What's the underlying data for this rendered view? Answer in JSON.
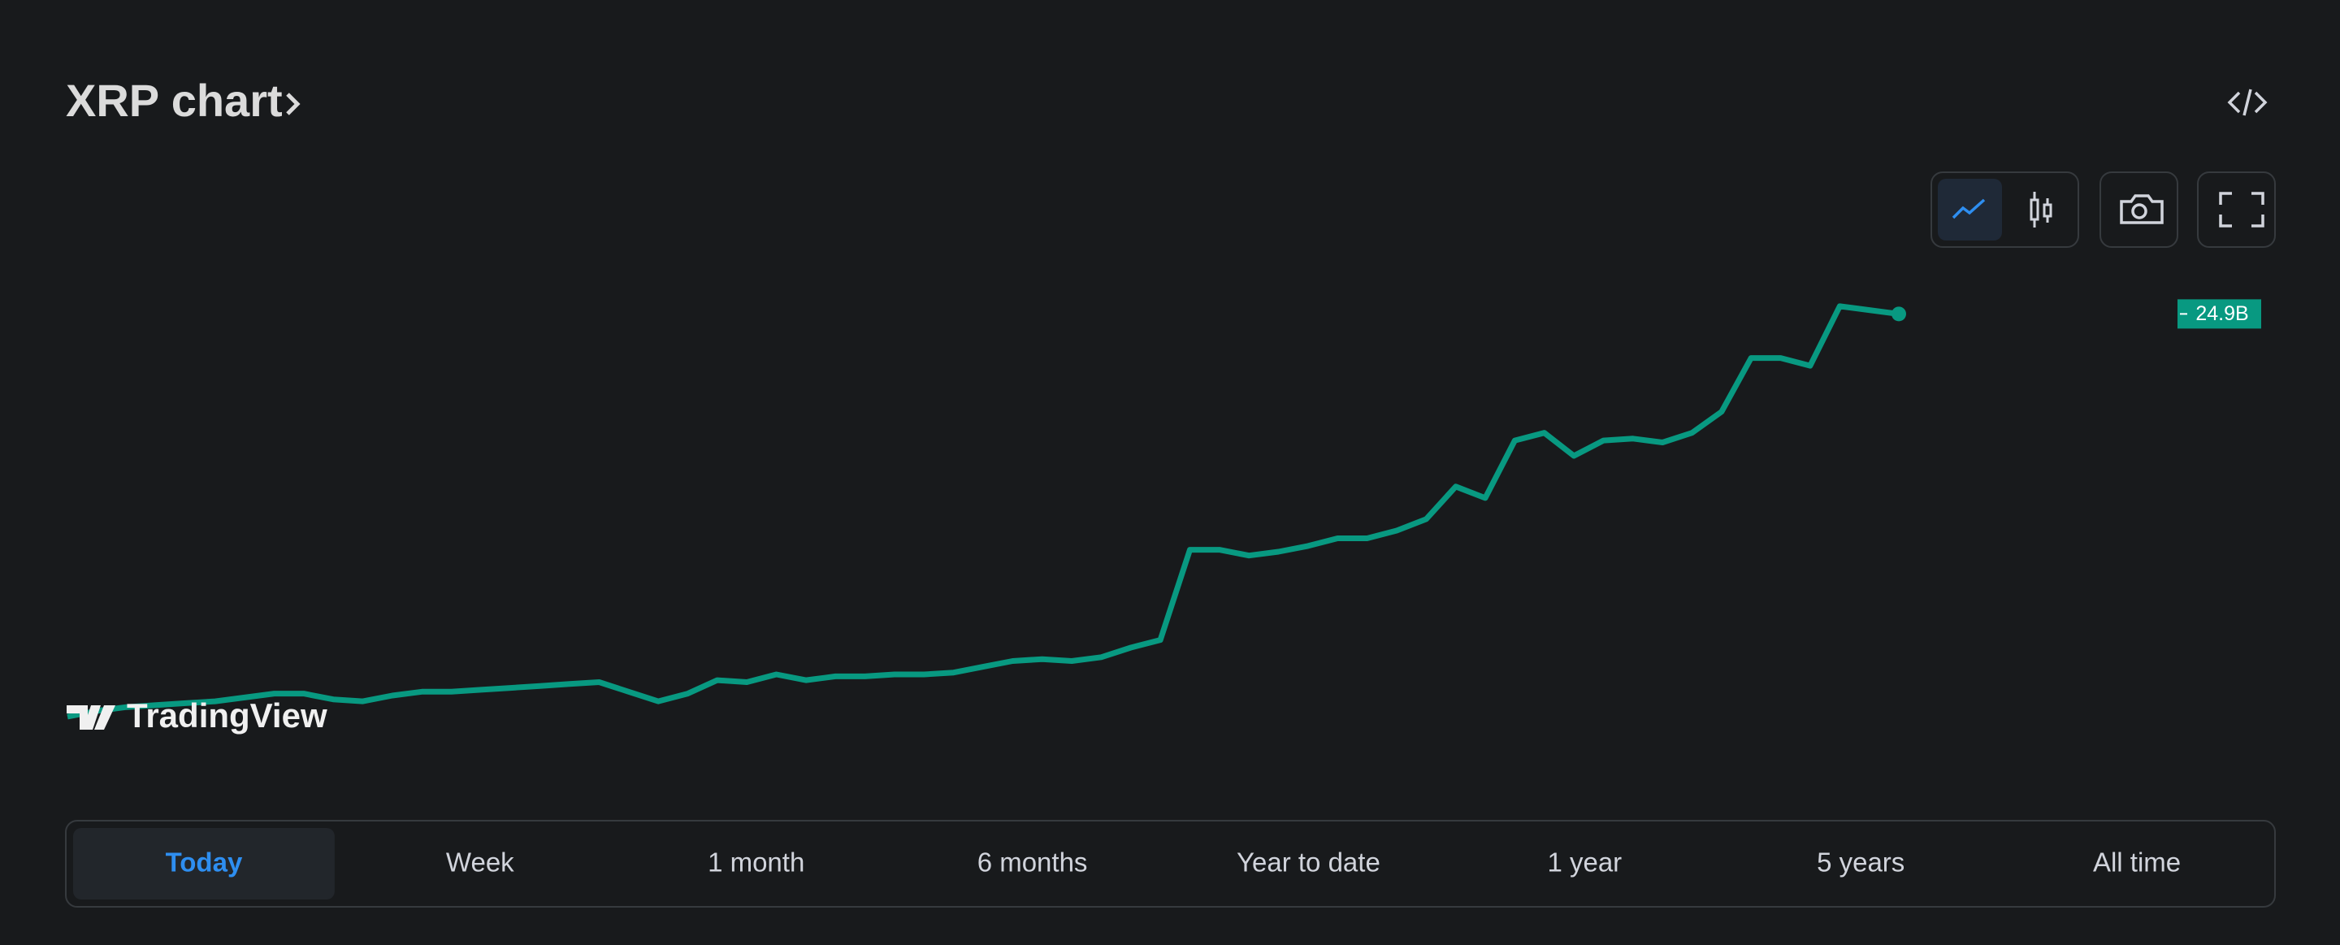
{
  "header": {
    "title": "XRP chart"
  },
  "chart_data": {
    "type": "line",
    "color": "#089981",
    "ylim": [
      0,
      30
    ],
    "values": [
      3.9,
      4.2,
      4.4,
      4.5,
      4.6,
      4.7,
      4.9,
      5.1,
      5.1,
      4.8,
      4.7,
      5.0,
      5.2,
      5.2,
      5.3,
      5.4,
      5.5,
      5.6,
      5.7,
      5.2,
      4.7,
      5.1,
      5.8,
      5.7,
      6.1,
      5.8,
      6.0,
      6.0,
      6.1,
      6.1,
      6.2,
      6.5,
      6.8,
      6.9,
      6.8,
      7.0,
      7.5,
      7.9,
      12.6,
      12.6,
      12.3,
      12.5,
      12.8,
      13.2,
      13.2,
      13.6,
      14.2,
      15.9,
      15.3,
      18.3,
      18.7,
      17.5,
      18.3,
      18.4,
      18.2,
      18.7,
      19.8,
      22.6,
      22.6,
      22.2,
      25.3,
      25.1,
      24.9
    ],
    "last_label": {
      "value": 24.9,
      "label": "24.9B"
    },
    "watermark": "TradingView"
  },
  "ranges": [
    "Today",
    "Week",
    "1 month",
    "6 months",
    "Year to date",
    "1 year",
    "5 years",
    "All time"
  ],
  "selected_range": 0
}
